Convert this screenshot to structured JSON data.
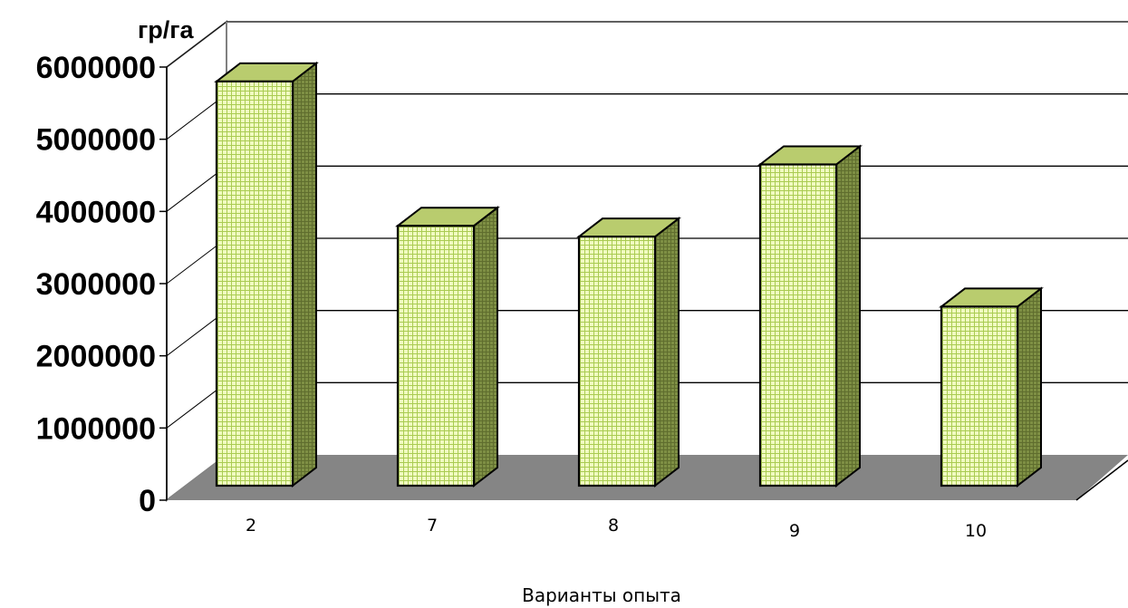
{
  "chart_data": {
    "type": "bar",
    "style": "3d",
    "categories": [
      "2",
      "7",
      "8",
      "9",
      "10"
    ],
    "values": [
      5600000,
      3600000,
      3450000,
      4450000,
      2480000
    ],
    "yunit": "гр/га",
    "xlabel": "Варианты опыта",
    "ylim": [
      0,
      6000000
    ],
    "yticks": [
      "0",
      "1000000",
      "2000000",
      "3000000",
      "4000000",
      "5000000",
      "6000000"
    ],
    "grid": true,
    "legend": "none",
    "colors": {
      "bar_front": "#f1fcc1",
      "bar_grid": "#aacb52",
      "bar_top": "#b9cc6e",
      "bar_side": "#7e8f44",
      "floor": "#858585",
      "wall": "#ffffff",
      "gridline": "#000000"
    }
  }
}
